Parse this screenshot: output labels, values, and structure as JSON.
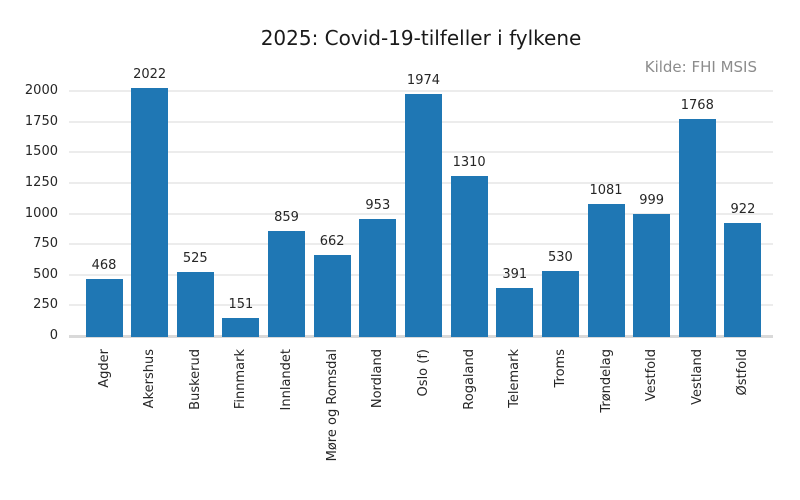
{
  "chart_data": {
    "type": "bar",
    "title": "2025: Covid-19-tilfeller i fylkene",
    "source": "Kilde: FHI MSIS",
    "categories": [
      "Agder",
      "Akershus",
      "Buskerud",
      "Finnmark",
      "Innlandet",
      "Møre og Romsdal",
      "Nordland",
      "Oslo (f)",
      "Rogaland",
      "Telemark",
      "Troms",
      "Trøndelag",
      "Vestfold",
      "Vestland",
      "Østfold"
    ],
    "values": [
      468,
      2022,
      525,
      151,
      859,
      662,
      953,
      1974,
      1310,
      391,
      530,
      1081,
      999,
      1768,
      922
    ],
    "bar_value_labels": [
      "468",
      "2022",
      "525",
      "151",
      "859",
      "662",
      "953",
      "1974",
      "1310",
      "391",
      "530",
      "1081",
      "999",
      "1768",
      "922"
    ],
    "xlabel": "",
    "ylabel": "",
    "yticks": [
      0,
      250,
      500,
      750,
      1000,
      1250,
      1500,
      1750,
      2000
    ],
    "ytick_labels": [
      "0",
      "250",
      "500",
      "750",
      "1000",
      "1250",
      "1500",
      "1750",
      "2000"
    ],
    "ylim": [
      0,
      2123
    ],
    "grid": "horizontal",
    "legend": "none",
    "x_tick_rotation_deg": 90,
    "colors": {
      "bar": "#1f77b4",
      "grid": "#ececec",
      "baseline": "#d9d9d9",
      "text": "#262626",
      "title": "#1a1a1a",
      "source": "#8c8c8c",
      "background": "#ffffff"
    }
  }
}
